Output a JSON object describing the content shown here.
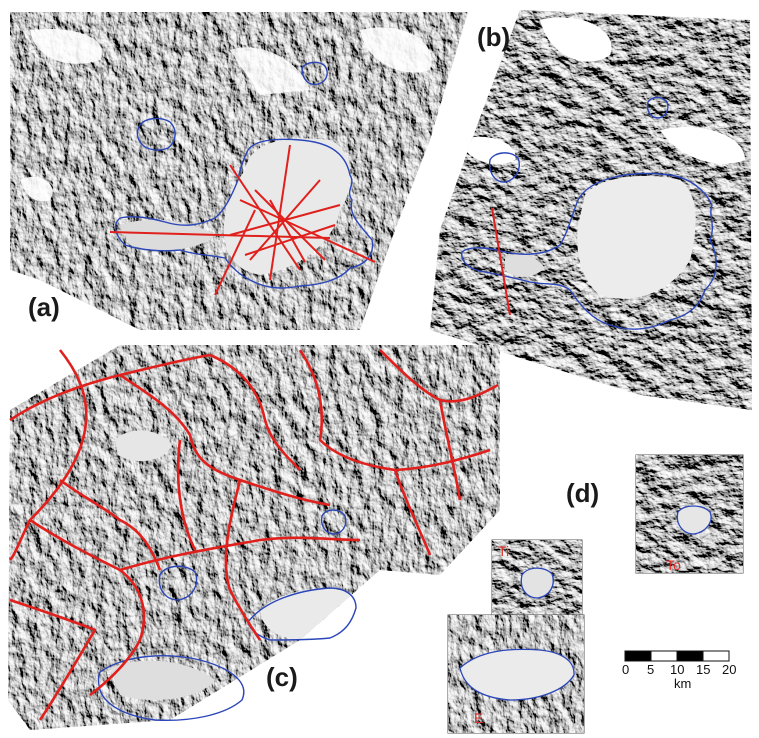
{
  "figure": {
    "panels": [
      {
        "id": "a",
        "label": "(a)"
      },
      {
        "id": "b",
        "label": "(b)"
      },
      {
        "id": "c",
        "label": "(c)"
      },
      {
        "id": "d",
        "label": "(d)"
      }
    ],
    "insets": [
      {
        "id": "Ti",
        "label": "Ti"
      },
      {
        "id": "E",
        "label": "E"
      },
      {
        "id": "To",
        "label": "To"
      }
    ],
    "scale_bar": {
      "ticks": [
        "0",
        "5",
        "10",
        "15",
        "20"
      ],
      "unit": "km"
    },
    "colors": {
      "boundary": "#2b46b8",
      "lines": "#e0201c",
      "relief_dark": "#3a3a3a",
      "relief_mid": "#8a8a8a",
      "relief_light": "#d8d8d8"
    }
  }
}
